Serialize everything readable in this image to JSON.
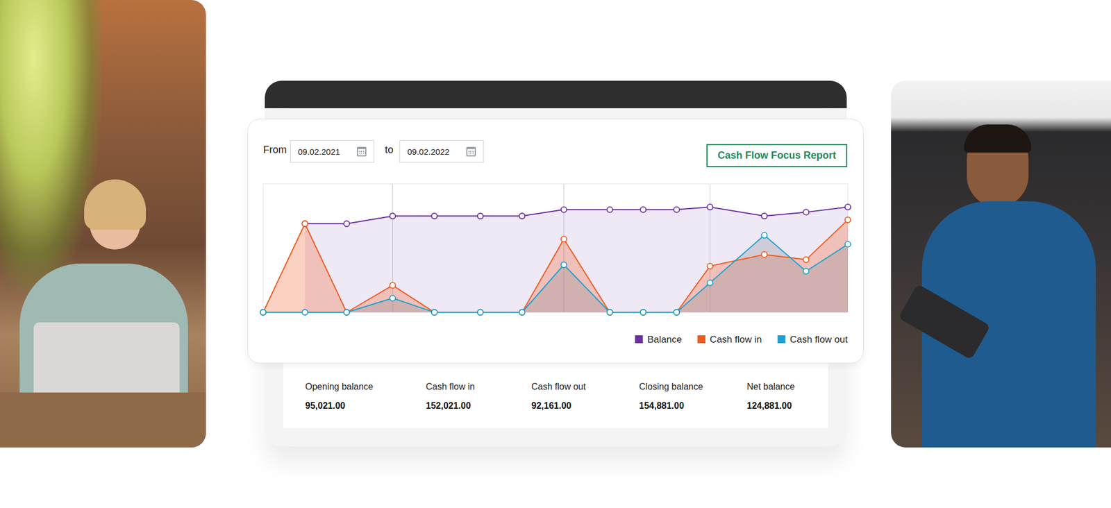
{
  "date_range": {
    "from_label": "From",
    "from": "09.02.2021",
    "to_label": "to",
    "to": "09.02.2022"
  },
  "button": "Cash Flow Focus Report",
  "chart_data": {
    "type": "area",
    "x": [
      0,
      1,
      2,
      3.1,
      4.1,
      5.2,
      6.2,
      7.2,
      8.3,
      9.1,
      9.9,
      10.7,
      12,
      13,
      14
    ],
    "xlim": [
      0,
      14
    ],
    "xticks": [
      3.1,
      7.2,
      10.7
    ],
    "ylim": [
      0,
      100
    ],
    "grid": true,
    "tick_labels": false,
    "legend": "bottom-right",
    "marker": "circle",
    "series": [
      {
        "name": "Balance",
        "color": "#6b2fa0",
        "values": [
          null,
          69,
          69,
          75,
          75,
          75,
          75,
          80,
          80,
          80,
          80,
          82,
          75,
          78,
          82
        ]
      },
      {
        "name": "Cash flow in",
        "color": "#f05a1e",
        "values": [
          0,
          69,
          0,
          21,
          0,
          0,
          0,
          57,
          0,
          0,
          0,
          36,
          45,
          41,
          72
        ]
      },
      {
        "name": "Cash flow out",
        "color": "#1ba0d0",
        "values": [
          0,
          0,
          0,
          11,
          0,
          0,
          0,
          37,
          0,
          0,
          0,
          23,
          60,
          32,
          53
        ]
      }
    ]
  },
  "summary": [
    {
      "label": "Opening balance",
      "value": "95,021.00"
    },
    {
      "label": "Cash flow in",
      "value": "152,021.00"
    },
    {
      "label": "Cash flow out",
      "value": "92,161.00"
    },
    {
      "label": "Closing balance",
      "value": "154,881.00"
    },
    {
      "label": "Net balance",
      "value": "124,881.00"
    }
  ]
}
